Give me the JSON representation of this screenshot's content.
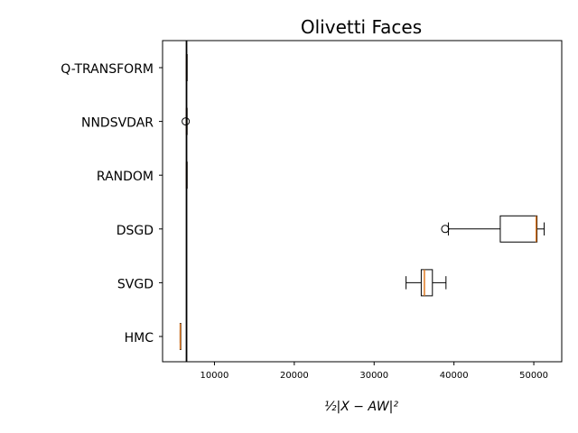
{
  "chart_data": {
    "type": "boxplot",
    "orientation": "horizontal",
    "title": "Olivetti Faces",
    "xlabel": "½|X − AW|²",
    "xlim": [
      3500,
      53500
    ],
    "xticks": [
      10000,
      20000,
      30000,
      40000,
      50000
    ],
    "reference_line_x": 6500,
    "categories": [
      "HMC",
      "SVGD",
      "DSGD",
      "RANDOM",
      "NNDSVDAR",
      "Q-TRANSFORM"
    ],
    "boxes": [
      {
        "name": "HMC",
        "whislo": 5700,
        "q1": 5700,
        "med": 5720,
        "q3": 5740,
        "whishi": 5740,
        "fliers": []
      },
      {
        "name": "SVGD",
        "whislo": 34000,
        "q1": 35900,
        "med": 36300,
        "q3": 37300,
        "whishi": 39000,
        "fliers": []
      },
      {
        "name": "DSGD",
        "whislo": 39300,
        "q1": 45800,
        "med": 50300,
        "q3": 50400,
        "whishi": 51300,
        "fliers": [
          38900
        ]
      },
      {
        "name": "RANDOM",
        "whislo": 6490,
        "q1": 6495,
        "med": 6500,
        "q3": 6505,
        "whishi": 6510,
        "fliers": []
      },
      {
        "name": "NNDSVDAR",
        "whislo": 6480,
        "q1": 6490,
        "med": 6500,
        "q3": 6510,
        "whishi": 6520,
        "fliers": [
          6400
        ]
      },
      {
        "name": "Q-TRANSFORM",
        "whislo": 6490,
        "q1": 6495,
        "med": 6500,
        "q3": 6505,
        "whishi": 6510,
        "fliers": []
      }
    ],
    "colors": {
      "box": "#000000",
      "median": "#e07b23",
      "reference_line": "#000000"
    },
    "grid": false
  }
}
